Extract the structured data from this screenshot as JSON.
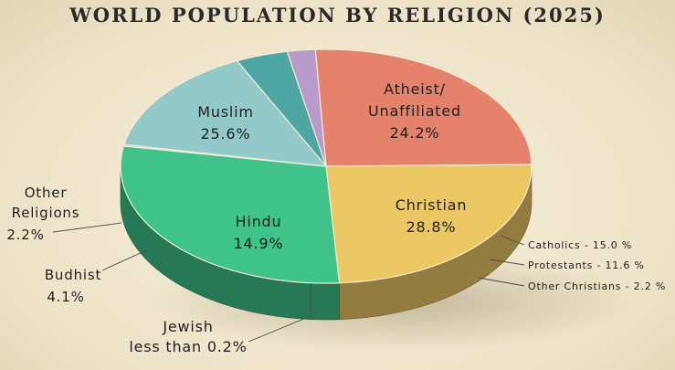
{
  "chart_data": {
    "type": "pie",
    "title": "WORLD POPULATION BY RELIGION (2025)",
    "slices": [
      {
        "key": "muslim",
        "label": "Muslim",
        "value": 25.6,
        "value_label": "25.6%",
        "color": "#e5826b"
      },
      {
        "key": "atheist",
        "label": "Atheist/ Unaffiliated",
        "label_lines": [
          "Atheist/",
          "Unaffiliated"
        ],
        "value": 24.2,
        "value_label": "24.2%",
        "color": "#ecc865"
      },
      {
        "key": "christian",
        "label": "Christian",
        "value": 28.8,
        "value_label": "28.8%",
        "color": "#3fc38a"
      },
      {
        "key": "jewish",
        "label": "Jewish less than 0.2%",
        "label_lines": [
          "Jewish",
          "less than 0.2%"
        ],
        "value": 0.2,
        "color": "#8fc4c3"
      },
      {
        "key": "hindu",
        "label": "Hindu",
        "value": 14.9,
        "value_label": "14.9%",
        "color": "#93c9c8"
      },
      {
        "key": "buddhist",
        "label": "Budhist",
        "value": 4.1,
        "value_label": "4.1%",
        "color": "#4fa7a3"
      },
      {
        "key": "other",
        "label": "Other Religions",
        "label_lines": [
          "Other",
          "Religions"
        ],
        "value": 2.2,
        "value_label": "2.2%",
        "color": "#b89acb"
      }
    ],
    "christian_breakdown": [
      {
        "label": "Catholics - 15.0 %",
        "value": 15.0
      },
      {
        "label": "Protestants - 11.6 %",
        "value": 11.6
      },
      {
        "label": "Other Christians - 2.2 %",
        "value": 2.2
      }
    ],
    "legend": "none"
  }
}
